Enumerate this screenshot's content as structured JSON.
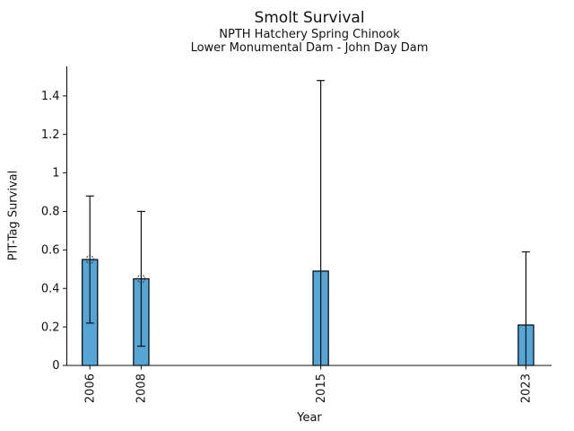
{
  "figure": {
    "title": "Smolt Survival",
    "subtitle_line1": "NPTH Hatchery Spring Chinook",
    "subtitle_line2": "Lower Monumental Dam - John Day Dam"
  },
  "chart_data": {
    "type": "bar",
    "title": "Smolt Survival",
    "subtitle": [
      "NPTH Hatchery Spring Chinook",
      "Lower Monumental Dam - John Day Dam"
    ],
    "xlabel": "Year",
    "ylabel": "PIT-Tag Survival",
    "x": [
      2006,
      2008,
      2015,
      2023
    ],
    "x_tick_labels": [
      "2006",
      "2008",
      "2015",
      "2023"
    ],
    "series": [
      {
        "name": "PIT-Tag Survival",
        "values": [
          0.55,
          0.45,
          0.49,
          0.21
        ],
        "ci_low": [
          0.22,
          0.1,
          0.0,
          0.0
        ],
        "ci_high": [
          0.88,
          0.8,
          1.48,
          0.59
        ]
      }
    ],
    "point_markers": [
      {
        "x": 2006,
        "y": 0.55
      },
      {
        "x": 2008,
        "y": 0.45
      }
    ],
    "yticks": [
      0,
      0.2,
      0.4,
      0.6,
      0.8,
      1.0,
      1.2,
      1.4
    ],
    "ytick_labels": [
      "0",
      "0.2",
      "0.4",
      "0.6",
      "0.8",
      "1",
      "1.2",
      "1.4"
    ],
    "ylim": [
      0,
      1.553
    ],
    "xlim": [
      2005.1,
      2024.0
    ],
    "bar_width_x": 0.6,
    "x_tick_rotation": 90,
    "grid": false,
    "legend": false,
    "bar_color": "#55a5d5",
    "bar_edge_color": "#000000",
    "error_color": "#111111",
    "marker_color": "#333333",
    "axis_color": "#111111"
  }
}
